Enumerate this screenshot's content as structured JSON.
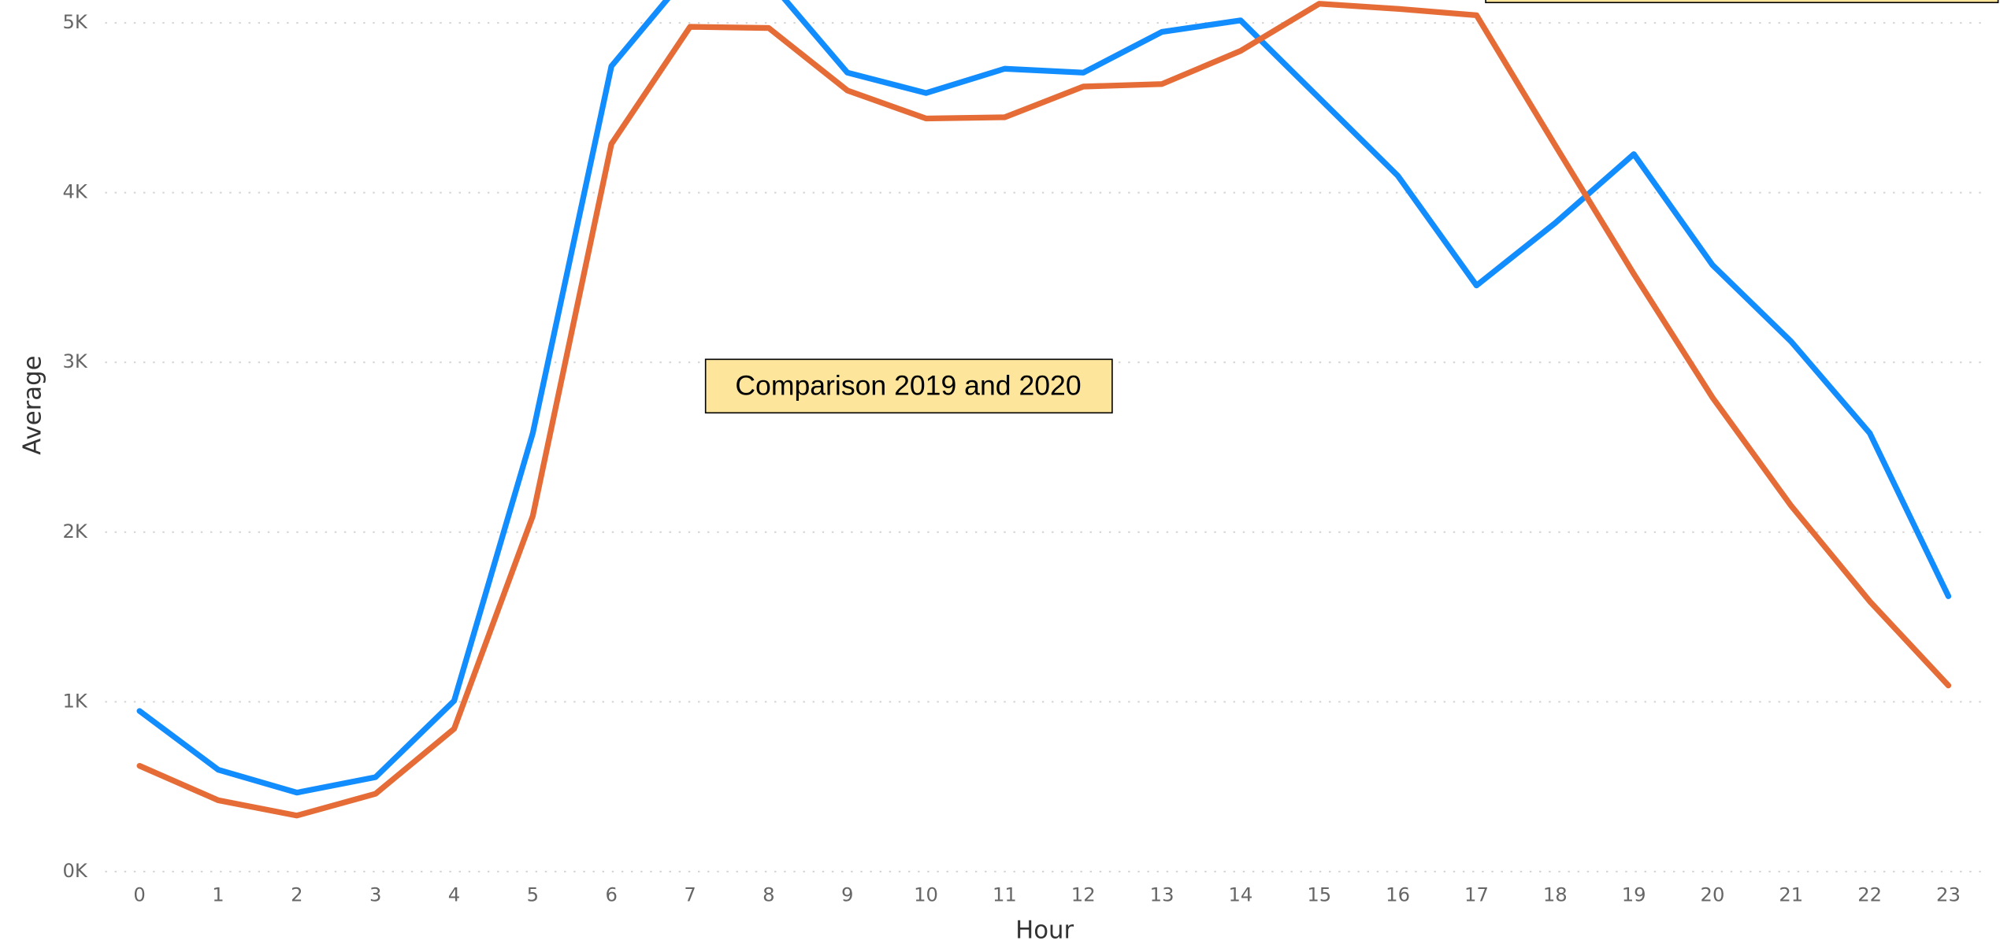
{
  "chart_data": {
    "type": "line",
    "x_label": "Hour",
    "y_label": "Average",
    "annotation": "Comparison 2019 and 2020",
    "x": [
      0,
      1,
      2,
      3,
      4,
      5,
      6,
      7,
      8,
      9,
      10,
      11,
      12,
      13,
      14,
      15,
      16,
      17,
      18,
      19,
      20,
      21,
      22,
      23
    ],
    "xlim": [
      0,
      23
    ],
    "ylim": [
      0,
      5135
    ],
    "yticks": [
      {
        "value": 0,
        "label": "0K"
      },
      {
        "value": 1000,
        "label": "1K"
      },
      {
        "value": 2000,
        "label": "2K"
      },
      {
        "value": 3000,
        "label": "3K"
      },
      {
        "value": 4000,
        "label": "4K"
      },
      {
        "value": 5000,
        "label": "5K"
      }
    ],
    "grid": true,
    "series": [
      {
        "color": "#118dff",
        "values": [
          946,
          600,
          465,
          556,
          1006,
          2583,
          4745,
          5300,
          5250,
          4707,
          4587,
          4730,
          4707,
          4947,
          5015,
          4557,
          4099,
          3453,
          3821,
          4227,
          3574,
          3123,
          2583,
          1622
        ]
      },
      {
        "color": "#e66c37",
        "values": [
          623,
          420,
          330,
          458,
          841,
          2095,
          4287,
          4977,
          4970,
          4602,
          4437,
          4444,
          4625,
          4640,
          4835,
          5113,
          5083,
          5045,
          4279,
          3521,
          2793,
          2155,
          1592,
          1096
        ]
      }
    ]
  }
}
